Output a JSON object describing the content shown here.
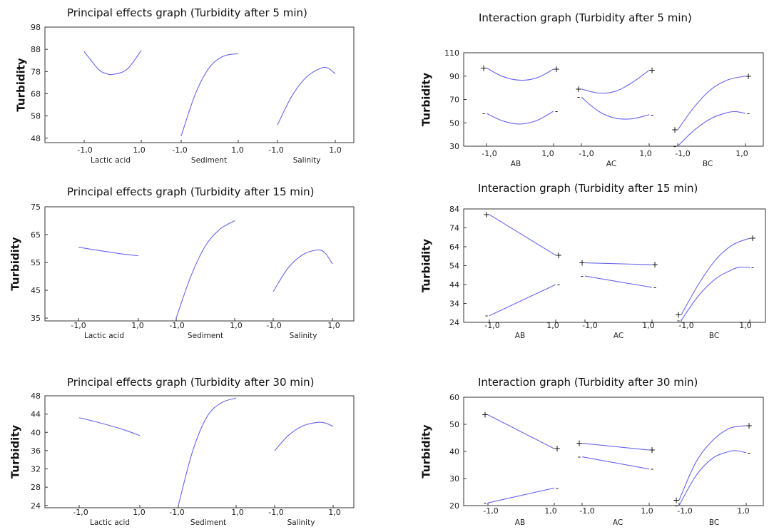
{
  "chart_data": [
    {
      "type": "line",
      "kind": "main",
      "title": "Principal effects graph (Turbidity after 5 min)",
      "ylabel": "Turbidity",
      "ylim": [
        46,
        98
      ],
      "yticks": [
        "98",
        "88",
        "78",
        "68",
        "58",
        "48"
      ],
      "yticks_values": [
        98,
        88,
        78,
        68,
        58,
        48
      ],
      "xtick_labels": [
        "-1,0",
        "1,0"
      ],
      "panels": [
        {
          "factor": "Lactic acid",
          "x": [
            -1,
            -0.5,
            -0.25,
            0,
            0.5,
            1
          ],
          "y": [
            87,
            79,
            77.2,
            76.7,
            79,
            87.5
          ]
        },
        {
          "factor": "Sediment",
          "x": [
            -1,
            -0.5,
            0,
            0.5,
            1
          ],
          "y": [
            49,
            68,
            80,
            85,
            86
          ]
        },
        {
          "factor": "Salinity",
          "x": [
            -1,
            -0.5,
            0,
            0.5,
            0.75,
            1
          ],
          "y": [
            54,
            67,
            75.5,
            79.5,
            79.5,
            77
          ]
        }
      ]
    },
    {
      "type": "line",
      "kind": "interaction",
      "title": "Interaction graph (Turbidity after 5 min)",
      "ylabel": "Turbidity",
      "ylim": [
        30,
        110
      ],
      "yticks": [
        "110",
        "90",
        "70",
        "50",
        "30"
      ],
      "yticks_values": [
        110,
        90,
        70,
        50,
        30
      ],
      "xtick_labels": [
        "-1,0",
        "1,0"
      ],
      "panels": [
        {
          "factor": "AB",
          "series": [
            {
              "marker": "+",
              "x": [
                -1,
                -0.5,
                0,
                0.5,
                1
              ],
              "y": [
                97,
                89.5,
                86.5,
                88.5,
                96
              ]
            },
            {
              "marker": "-",
              "x": [
                -1,
                -0.5,
                0,
                0.5,
                1
              ],
              "y": [
                58,
                51.5,
                49,
                52,
                60
              ]
            }
          ]
        },
        {
          "factor": "AC",
          "series": [
            {
              "marker": "+",
              "x": [
                -1,
                -0.5,
                0,
                0.5,
                1
              ],
              "y": [
                79,
                75.5,
                77,
                84.5,
                95
              ]
            },
            {
              "marker": "-",
              "x": [
                -1,
                -0.5,
                0,
                0.5,
                1
              ],
              "y": [
                72,
                60,
                54,
                53.5,
                57
              ]
            }
          ]
        },
        {
          "factor": "BC",
          "series": [
            {
              "marker": "+",
              "x": [
                -1,
                -0.5,
                0,
                0.5,
                1
              ],
              "y": [
                44,
                64,
                79,
                87,
                90
              ]
            },
            {
              "marker": "-",
              "x": [
                -1,
                -0.5,
                0,
                0.5,
                0.75,
                1
              ],
              "y": [
                30,
                44,
                54,
                59,
                59.5,
                58
              ]
            }
          ]
        }
      ]
    },
    {
      "type": "line",
      "kind": "main",
      "title": "Principal effects graph (Turbidity after 15 min)",
      "ylabel": "Turbidity",
      "ylim": [
        34,
        75
      ],
      "yticks": [
        "75",
        "65",
        "55",
        "45",
        "35"
      ],
      "yticks_values": [
        75,
        65,
        55,
        45,
        35
      ],
      "xtick_labels": [
        "-1,0",
        "1,0"
      ],
      "panels": [
        {
          "factor": "Lactic acid",
          "x": [
            -1,
            -0.5,
            0,
            0.5,
            1
          ],
          "y": [
            60.5,
            59.6,
            58.8,
            58,
            57.4
          ]
        },
        {
          "factor": "Sediment",
          "x": [
            -1,
            -0.5,
            0,
            0.5,
            1
          ],
          "y": [
            35,
            50,
            61,
            67,
            70
          ]
        },
        {
          "factor": "Salinity",
          "x": [
            -1,
            -0.5,
            0,
            0.5,
            0.75,
            1
          ],
          "y": [
            44.5,
            53,
            57.8,
            59.5,
            58.4,
            54.5
          ]
        }
      ]
    },
    {
      "type": "line",
      "kind": "interaction",
      "title": "Interaction graph (Turbidity after 15 min)",
      "ylabel": "Turbidity",
      "ylim": [
        24,
        84
      ],
      "yticks": [
        "84",
        "74",
        "64",
        "54",
        "44",
        "34",
        "24"
      ],
      "yticks_values": [
        84,
        74,
        64,
        54,
        44,
        34,
        24
      ],
      "xtick_labels": [
        "-1,0",
        "1,0"
      ],
      "panels": [
        {
          "factor": "AB",
          "series": [
            {
              "marker": "+",
              "x": [
                -1,
                1
              ],
              "y": [
                81,
                59.5
              ]
            },
            {
              "marker": "-",
              "x": [
                -1,
                1
              ],
              "y": [
                27.5,
                44
              ]
            }
          ]
        },
        {
          "factor": "AC",
          "series": [
            {
              "marker": "+",
              "x": [
                -1,
                1
              ],
              "y": [
                55.5,
                54.5
              ]
            },
            {
              "marker": "-",
              "x": [
                -1,
                1
              ],
              "y": [
                48.5,
                42.5
              ]
            }
          ]
        },
        {
          "factor": "BC",
          "series": [
            {
              "marker": "+",
              "x": [
                -1,
                -0.5,
                0,
                0.5,
                1
              ],
              "y": [
                28,
                44,
                57,
                65,
                68.5
              ]
            },
            {
              "marker": "-",
              "x": [
                -1,
                -0.5,
                0,
                0.5,
                0.75,
                1
              ],
              "y": [
                25,
                38,
                47,
                52,
                53.2,
                53
              ]
            }
          ]
        }
      ]
    },
    {
      "type": "line",
      "kind": "main",
      "title": "Principal effects graph (Turbidity after 30 min)",
      "ylabel": "Turbidity",
      "ylim": [
        23.5,
        48
      ],
      "yticks": [
        "48",
        "44",
        "40",
        "36",
        "32",
        "28",
        "24"
      ],
      "yticks_values": [
        48,
        44,
        40,
        36,
        32,
        28,
        24
      ],
      "xtick_labels": [
        "-1,0",
        "1,0"
      ],
      "panels": [
        {
          "factor": "Lactic acid",
          "x": [
            -1,
            -0.5,
            0,
            0.5,
            1
          ],
          "y": [
            43.2,
            42.4,
            41.5,
            40.5,
            39.3
          ]
        },
        {
          "factor": "Sediment",
          "x": [
            -1,
            -0.5,
            0,
            0.5,
            1
          ],
          "y": [
            24,
            36,
            43.5,
            46.5,
            47.5
          ]
        },
        {
          "factor": "Salinity",
          "x": [
            -1,
            -0.5,
            0,
            0.5,
            0.75,
            1
          ],
          "y": [
            36,
            39.5,
            41.5,
            42.2,
            42,
            41.3
          ]
        }
      ]
    },
    {
      "type": "line",
      "kind": "interaction",
      "title": "Interaction graph (Turbidity after 30 min)",
      "ylabel": "Turbidity",
      "ylim": [
        20,
        60
      ],
      "yticks": [
        "60",
        "50",
        "40",
        "30",
        "20"
      ],
      "yticks_values": [
        60,
        50,
        40,
        30,
        20
      ],
      "xtick_labels": [
        "-1,0",
        "1,0"
      ],
      "panels": [
        {
          "factor": "AB",
          "series": [
            {
              "marker": "+",
              "x": [
                -1,
                1
              ],
              "y": [
                53.5,
                41
              ]
            },
            {
              "marker": "-",
              "x": [
                -1,
                1
              ],
              "y": [
                21,
                26.5
              ]
            }
          ]
        },
        {
          "factor": "AC",
          "series": [
            {
              "marker": "+",
              "x": [
                -1,
                1
              ],
              "y": [
                43,
                40.5
              ]
            },
            {
              "marker": "-",
              "x": [
                -1,
                1
              ],
              "y": [
                38,
                33.5
              ]
            }
          ]
        },
        {
          "factor": "BC",
          "series": [
            {
              "marker": "+",
              "x": [
                -1,
                -0.5,
                0,
                0.5,
                1
              ],
              "y": [
                22,
                36,
                44,
                48.5,
                49.5
              ]
            },
            {
              "marker": "-",
              "x": [
                -1,
                -0.5,
                0,
                0.5,
                0.75,
                1
              ],
              "y": [
                20,
                31,
                37.5,
                40,
                40.2,
                39.5
              ]
            }
          ]
        }
      ]
    }
  ]
}
